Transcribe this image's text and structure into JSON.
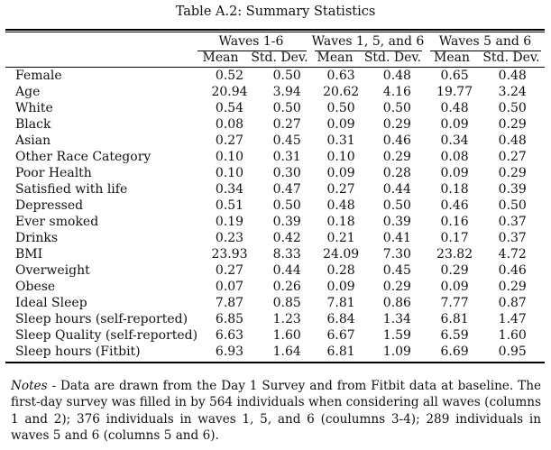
{
  "caption": "Table A.2: Summary Statistics",
  "groups": [
    "Waves 1-6",
    "Waves 1, 5, and 6",
    "Waves 5 and 6"
  ],
  "subheaders": [
    "Mean",
    "Std. Dev.",
    "Mean",
    "Std. Dev.",
    "Mean",
    "Std. Dev."
  ],
  "rows": [
    {
      "label": "Female",
      "values": [
        "0.52",
        "0.50",
        "0.63",
        "0.48",
        "0.65",
        "0.48"
      ]
    },
    {
      "label": "Age",
      "values": [
        "20.94",
        "3.94",
        "20.62",
        "4.16",
        "19.77",
        "3.24"
      ]
    },
    {
      "label": "White",
      "values": [
        "0.54",
        "0.50",
        "0.50",
        "0.50",
        "0.48",
        "0.50"
      ]
    },
    {
      "label": "Black",
      "values": [
        "0.08",
        "0.27",
        "0.09",
        "0.29",
        "0.09",
        "0.29"
      ]
    },
    {
      "label": "Asian",
      "values": [
        "0.27",
        "0.45",
        "0.31",
        "0.46",
        "0.34",
        "0.48"
      ]
    },
    {
      "label": "Other Race Category",
      "values": [
        "0.10",
        "0.31",
        "0.10",
        "0.29",
        "0.08",
        "0.27"
      ]
    },
    {
      "label": "Poor Health",
      "values": [
        "0.10",
        "0.30",
        "0.09",
        "0.28",
        "0.09",
        "0.29"
      ]
    },
    {
      "label": "Satisfied with life",
      "values": [
        "0.34",
        "0.47",
        "0.27",
        "0.44",
        "0.18",
        "0.39"
      ]
    },
    {
      "label": "Depressed",
      "values": [
        "0.51",
        "0.50",
        "0.48",
        "0.50",
        "0.46",
        "0.50"
      ]
    },
    {
      "label": "Ever smoked",
      "values": [
        "0.19",
        "0.39",
        "0.18",
        "0.39",
        "0.16",
        "0.37"
      ]
    },
    {
      "label": "Drinks",
      "values": [
        "0.23",
        "0.42",
        "0.21",
        "0.41",
        "0.17",
        "0.37"
      ]
    },
    {
      "label": "BMI",
      "values": [
        "23.93",
        "8.33",
        "24.09",
        "7.30",
        "23.82",
        "4.72"
      ]
    },
    {
      "label": "Overweight",
      "values": [
        "0.27",
        "0.44",
        "0.28",
        "0.45",
        "0.29",
        "0.46"
      ]
    },
    {
      "label": "Obese",
      "values": [
        "0.07",
        "0.26",
        "0.09",
        "0.29",
        "0.09",
        "0.29"
      ]
    },
    {
      "label": "Ideal Sleep",
      "values": [
        "7.87",
        "0.85",
        "7.81",
        "0.86",
        "7.77",
        "0.87"
      ]
    },
    {
      "label": "Sleep hours (self-reported)",
      "values": [
        "6.85",
        "1.23",
        "6.84",
        "1.34",
        "6.81",
        "1.47"
      ]
    },
    {
      "label": "Sleep Quality (self-reported)",
      "values": [
        "6.63",
        "1.60",
        "6.67",
        "1.59",
        "6.59",
        "1.60"
      ]
    },
    {
      "label": "Sleep hours (Fitbit)",
      "values": [
        "6.93",
        "1.64",
        "6.81",
        "1.09",
        "6.69",
        "0.95"
      ]
    }
  ],
  "notes": {
    "label": "Notes",
    "text": " - Data are drawn from the Day 1 Survey and from Fitbit data at baseline. The first-day survey was filled in by 564 individuals when considering all waves (columns 1 and 2); 376 individuals in waves 1, 5, and 6 (coulumns 3-4); 289 individuals in waves 5 and 6 (columns 5 and 6)."
  }
}
